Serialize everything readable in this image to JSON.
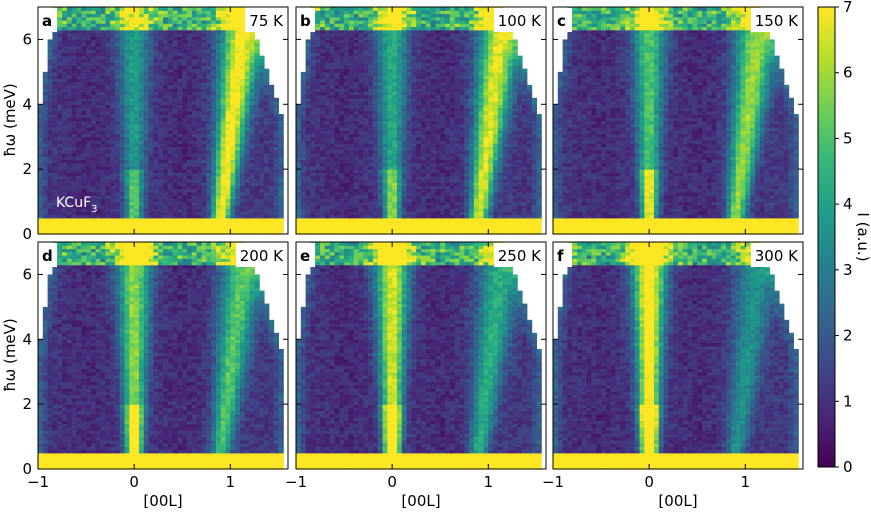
{
  "figure": {
    "xlabel": "[00L]",
    "ylabel": "ħω (meV)",
    "material_label": "KCuF",
    "material_subscript": "3",
    "colorbar_label": "I (a.u.)"
  },
  "colorbar": {
    "min": 0,
    "max": 7,
    "ticks": [
      "0",
      "1",
      "2",
      "3",
      "4",
      "5",
      "6",
      "7"
    ],
    "colormap": [
      "#440154",
      "#482878",
      "#3e4989",
      "#31688e",
      "#26828e",
      "#1f9e89",
      "#35b779",
      "#6ece58",
      "#b5de2b",
      "#fde725"
    ]
  },
  "chart_data": [
    {
      "type": "heatmap",
      "panel_label": "a",
      "temperature_label": "75 K",
      "xlim": [
        -1,
        1.6
      ],
      "ylim": [
        0,
        7
      ],
      "xticks": [
        "−1",
        "0",
        "1"
      ],
      "yticks": [
        "0",
        "2",
        "4",
        "6"
      ],
      "zlim": [
        0,
        7
      ],
      "bright_features": [
        {
          "feature": "L=0 line",
          "L": 0
        },
        {
          "feature": "L=1 line",
          "L": 1
        }
      ],
      "elastic_band_meV": [
        0,
        0.5
      ]
    },
    {
      "type": "heatmap",
      "panel_label": "b",
      "temperature_label": "100 K",
      "xlim": [
        -1,
        1.6
      ],
      "ylim": [
        0,
        7
      ],
      "xticks": [
        "−1",
        "0",
        "1"
      ],
      "yticks": [
        "0",
        "2",
        "4",
        "6"
      ],
      "zlim": [
        0,
        7
      ],
      "bright_features": [
        {
          "feature": "L=0 line",
          "L": 0
        },
        {
          "feature": "L=1 line",
          "L": 1
        }
      ],
      "elastic_band_meV": [
        0,
        0.5
      ]
    },
    {
      "type": "heatmap",
      "panel_label": "c",
      "temperature_label": "150 K",
      "xlim": [
        -1,
        1.6
      ],
      "ylim": [
        0,
        7
      ],
      "xticks": [
        "−1",
        "0",
        "1"
      ],
      "yticks": [
        "0",
        "2",
        "4",
        "6"
      ],
      "zlim": [
        0,
        7
      ],
      "bright_features": [
        {
          "feature": "L=0 line",
          "L": 0
        },
        {
          "feature": "L=1 line",
          "L": 1
        }
      ],
      "elastic_band_meV": [
        0,
        0.5
      ]
    },
    {
      "type": "heatmap",
      "panel_label": "d",
      "temperature_label": "200 K",
      "xlim": [
        -1,
        1.6
      ],
      "ylim": [
        0,
        7
      ],
      "xticks": [
        "−1",
        "0",
        "1"
      ],
      "yticks": [
        "0",
        "2",
        "4",
        "6"
      ],
      "zlim": [
        0,
        7
      ],
      "bright_features": [
        {
          "feature": "L=0 line",
          "L": 0
        },
        {
          "feature": "L=1 line",
          "L": 1
        }
      ],
      "elastic_band_meV": [
        0,
        0.5
      ]
    },
    {
      "type": "heatmap",
      "panel_label": "e",
      "temperature_label": "250 K",
      "xlim": [
        -1,
        1.6
      ],
      "ylim": [
        0,
        7
      ],
      "xticks": [
        "−1",
        "0",
        "1"
      ],
      "yticks": [
        "0",
        "2",
        "4",
        "6"
      ],
      "zlim": [
        0,
        7
      ],
      "bright_features": [
        {
          "feature": "L=0 line",
          "L": 0
        },
        {
          "feature": "L=1 line",
          "L": 1
        }
      ],
      "elastic_band_meV": [
        0,
        0.5
      ]
    },
    {
      "type": "heatmap",
      "panel_label": "f",
      "temperature_label": "300 K",
      "xlim": [
        -1,
        1.6
      ],
      "ylim": [
        0,
        7
      ],
      "xticks": [
        "−1",
        "0",
        "1"
      ],
      "yticks": [
        "0",
        "2",
        "4",
        "6"
      ],
      "zlim": [
        0,
        7
      ],
      "bright_features": [
        {
          "feature": "L=0 line",
          "L": 0
        },
        {
          "feature": "L=1 line",
          "L": 1
        }
      ],
      "elastic_band_meV": [
        0,
        0.5
      ]
    }
  ]
}
